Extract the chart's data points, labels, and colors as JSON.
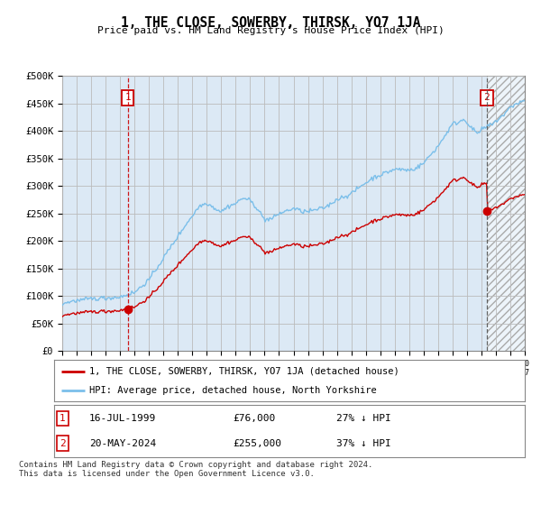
{
  "title": "1, THE CLOSE, SOWERBY, THIRSK, YO7 1JA",
  "subtitle": "Price paid vs. HM Land Registry's House Price Index (HPI)",
  "ylabel_ticks": [
    "£0",
    "£50K",
    "£100K",
    "£150K",
    "£200K",
    "£250K",
    "£300K",
    "£350K",
    "£400K",
    "£450K",
    "£500K"
  ],
  "ylim": [
    0,
    500000
  ],
  "xlim_start": 1995,
  "xlim_end": 2027,
  "hpi_color": "#7bbfea",
  "property_color": "#cc0000",
  "marker1_x": 1999.54,
  "marker1_price": 76000,
  "marker2_x": 2024.38,
  "marker2_price": 255000,
  "legend_line1": "1, THE CLOSE, SOWERBY, THIRSK, YO7 1JA (detached house)",
  "legend_line2": "HPI: Average price, detached house, North Yorkshire",
  "row1_label": "1",
  "row1_date": "16-JUL-1999",
  "row1_price": "£76,000",
  "row1_hpi": "27% ↓ HPI",
  "row2_label": "2",
  "row2_date": "20-MAY-2024",
  "row2_price": "£255,000",
  "row2_hpi": "37% ↓ HPI",
  "footer": "Contains HM Land Registry data © Crown copyright and database right 2024.\nThis data is licensed under the Open Government Licence v3.0.",
  "chart_bg": "#dce9f5",
  "plot_bg": "#ffffff",
  "grid_color": "#bbbbbb"
}
